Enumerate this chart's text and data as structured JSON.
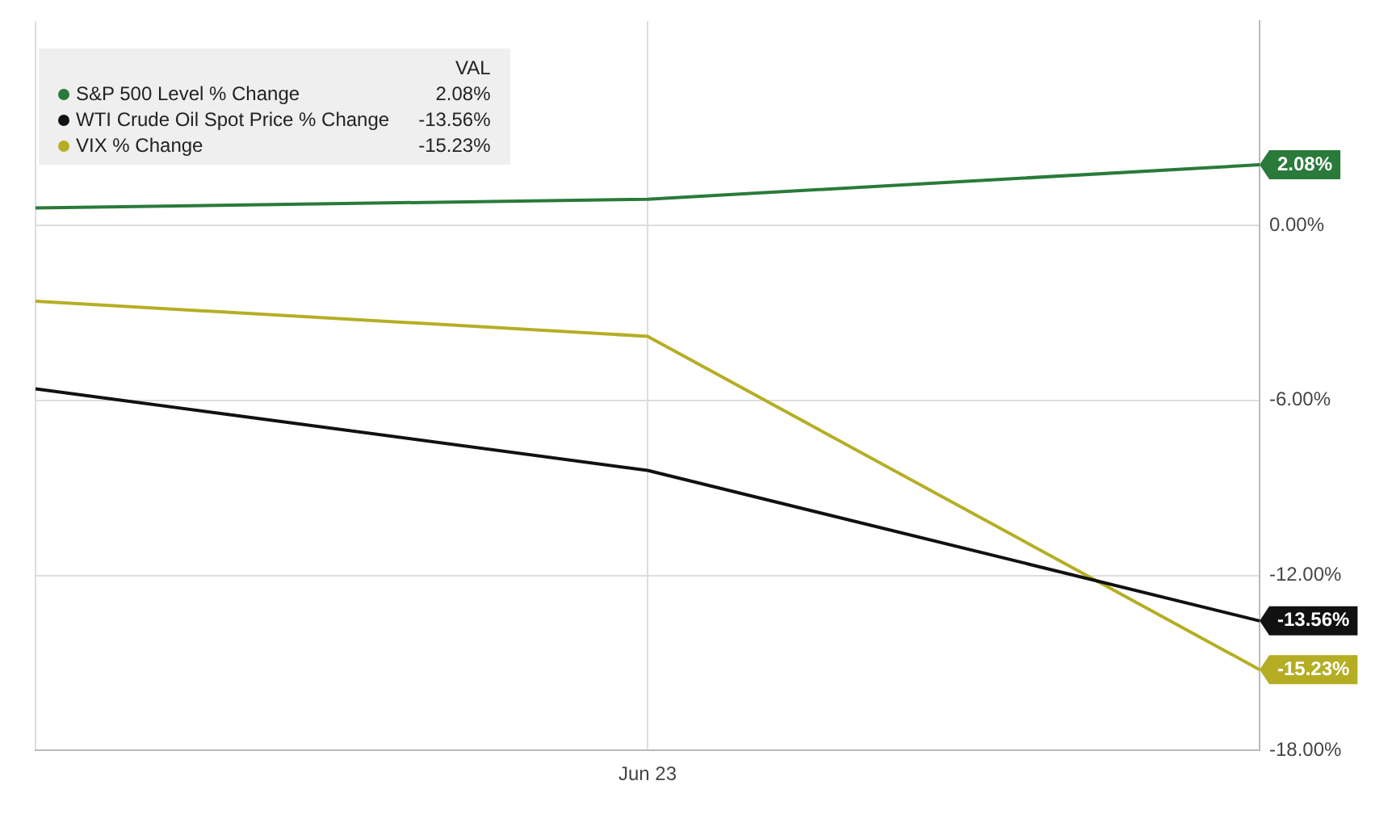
{
  "chart_data": {
    "type": "line",
    "categories": [
      null,
      "Jun 23",
      null
    ],
    "series": [
      {
        "name": "S&P 500 Level % Change",
        "color": "#2a7a3a",
        "values": [
          0.6,
          0.9,
          2.08
        ],
        "value_labels": [
          null,
          null,
          "2.08%"
        ]
      },
      {
        "name": "WTI Crude Oil Spot Price % Change",
        "color": "#111111",
        "values": [
          -5.6,
          -8.4,
          -13.56
        ],
        "value_labels": [
          null,
          null,
          "-13.56%"
        ]
      },
      {
        "name": "VIX % Change",
        "color": "#b5ae25",
        "values": [
          -2.6,
          -3.8,
          -15.23
        ],
        "value_labels": [
          null,
          null,
          "-15.23%"
        ]
      }
    ],
    "ylim": [
      -18,
      7
    ],
    "yticks": [
      {
        "value": 0,
        "label": "0.00%"
      },
      {
        "value": -6,
        "label": "-6.00%"
      },
      {
        "value": -12,
        "label": "-12.00%"
      },
      {
        "value": -18,
        "label": "-18.00%"
      }
    ],
    "legend_title": "VAL",
    "legend": "top left",
    "grid": true,
    "marker": "none",
    "line_style": "solid"
  }
}
